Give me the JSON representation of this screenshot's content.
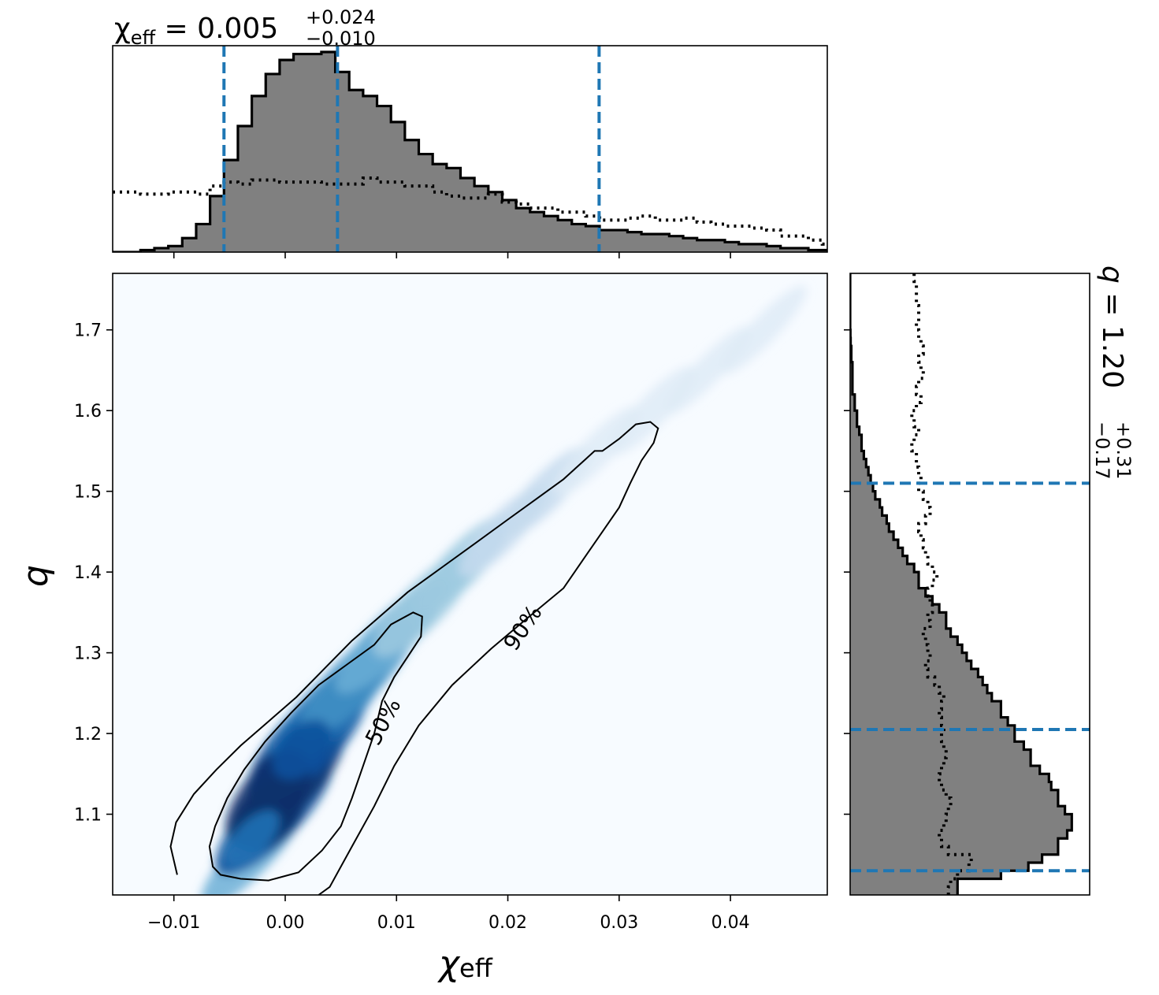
{
  "chart_data": [
    {
      "type": "histogram",
      "panel": "top-marginal",
      "title": {
        "prefix": "χ",
        "sub": "eff",
        "eq": " = 0.005",
        "sup": "+0.024",
        "low": "−0.010"
      },
      "x_range": [
        -0.0155,
        0.0487
      ],
      "dashed_lines": [
        -0.0055,
        0.0047,
        0.0282
      ],
      "bin_edges_start": -0.0155,
      "bin_width": 0.00125,
      "posterior_heights": [
        0.0,
        0.0,
        0.01,
        0.02,
        0.03,
        0.07,
        0.14,
        0.28,
        0.46,
        0.63,
        0.78,
        0.89,
        0.96,
        0.99,
        0.99,
        1.0,
        0.9,
        0.81,
        0.78,
        0.73,
        0.65,
        0.56,
        0.49,
        0.44,
        0.42,
        0.37,
        0.33,
        0.3,
        0.26,
        0.22,
        0.2,
        0.18,
        0.16,
        0.14,
        0.13,
        0.11,
        0.11,
        0.1,
        0.09,
        0.09,
        0.08,
        0.07,
        0.06,
        0.06,
        0.05,
        0.04,
        0.04,
        0.03,
        0.02,
        0.02,
        0.01,
        0.01
      ],
      "prior_heights": [
        0.3,
        0.3,
        0.29,
        0.29,
        0.3,
        0.3,
        0.29,
        0.33,
        0.35,
        0.34,
        0.36,
        0.36,
        0.35,
        0.35,
        0.35,
        0.34,
        0.34,
        0.34,
        0.37,
        0.35,
        0.35,
        0.33,
        0.33,
        0.3,
        0.28,
        0.27,
        0.27,
        0.29,
        0.25,
        0.24,
        0.22,
        0.22,
        0.2,
        0.2,
        0.18,
        0.16,
        0.16,
        0.17,
        0.18,
        0.16,
        0.16,
        0.17,
        0.15,
        0.14,
        0.13,
        0.13,
        0.12,
        0.11,
        0.08,
        0.08,
        0.06,
        0.04
      ],
      "x_ticks": [
        -0.01,
        0.0,
        0.01,
        0.02,
        0.03,
        0.04
      ]
    },
    {
      "type": "heatmap",
      "panel": "joint",
      "xlabel": {
        "main": "χ",
        "sub": "eff"
      },
      "ylabel": "q",
      "x_range": [
        -0.0155,
        0.0487
      ],
      "y_range": [
        1.0,
        1.77
      ],
      "x_ticks": [
        -0.01,
        0.0,
        0.01,
        0.02,
        0.03,
        0.04
      ],
      "x_tick_labels": [
        "−0.01",
        "0.00",
        "0.01",
        "0.02",
        "0.03",
        "0.04"
      ],
      "y_ticks": [
        1.1,
        1.2,
        1.3,
        1.4,
        1.5,
        1.6,
        1.7
      ],
      "y_tick_labels": [
        "1.1",
        "1.2",
        "1.3",
        "1.4",
        "1.5",
        "1.6",
        "1.7"
      ],
      "colormap": [
        "#f7fbff",
        "#deebf7",
        "#c6dbef",
        "#9ecae1",
        "#6baed6",
        "#4292c6",
        "#2171b5",
        "#08519c",
        "#08306b"
      ],
      "density_peak": [
        -0.0003,
        1.11
      ],
      "contour_labels": [
        "50%",
        "90%"
      ],
      "contour_50": [
        [
          -0.0065,
          1.035
        ],
        [
          -0.0068,
          1.06
        ],
        [
          -0.0063,
          1.085
        ],
        [
          -0.0052,
          1.12
        ],
        [
          -0.0037,
          1.155
        ],
        [
          -0.0018,
          1.19
        ],
        [
          0.0005,
          1.225
        ],
        [
          0.003,
          1.26
        ],
        [
          0.0055,
          1.285
        ],
        [
          0.008,
          1.31
        ],
        [
          0.0095,
          1.335
        ],
        [
          0.0115,
          1.35
        ],
        [
          0.0123,
          1.345
        ],
        [
          0.0122,
          1.32
        ],
        [
          0.011,
          1.295
        ],
        [
          0.0098,
          1.27
        ],
        [
          0.0087,
          1.24
        ],
        [
          0.008,
          1.2
        ],
        [
          0.007,
          1.16
        ],
        [
          0.006,
          1.12
        ],
        [
          0.005,
          1.085
        ],
        [
          0.0033,
          1.055
        ],
        [
          0.0012,
          1.028
        ],
        [
          -0.0015,
          1.018
        ],
        [
          -0.004,
          1.02
        ],
        [
          -0.0058,
          1.025
        ]
      ],
      "contour_90": [
        [
          -0.0097,
          1.025
        ],
        [
          -0.0103,
          1.06
        ],
        [
          -0.0098,
          1.09
        ],
        [
          -0.0082,
          1.125
        ],
        [
          -0.0062,
          1.155
        ],
        [
          -0.004,
          1.185
        ],
        [
          -0.0015,
          1.215
        ],
        [
          0.001,
          1.245
        ],
        [
          0.0035,
          1.28
        ],
        [
          0.006,
          1.315
        ],
        [
          0.0085,
          1.345
        ],
        [
          0.011,
          1.375
        ],
        [
          0.014,
          1.405
        ],
        [
          0.017,
          1.435
        ],
        [
          0.02,
          1.465
        ],
        [
          0.0225,
          1.49
        ],
        [
          0.025,
          1.515
        ],
        [
          0.027,
          1.54
        ],
        [
          0.0278,
          1.55
        ],
        [
          0.0285,
          1.55
        ],
        [
          0.03,
          1.565
        ],
        [
          0.0315,
          1.583
        ],
        [
          0.0328,
          1.586
        ],
        [
          0.0335,
          1.578
        ],
        [
          0.0331,
          1.56
        ],
        [
          0.032,
          1.538
        ],
        [
          0.031,
          1.51
        ],
        [
          0.03,
          1.48
        ],
        [
          0.0285,
          1.45
        ],
        [
          0.027,
          1.42
        ],
        [
          0.025,
          1.38
        ],
        [
          0.0215,
          1.34
        ],
        [
          0.0185,
          1.305
        ],
        [
          0.015,
          1.26
        ],
        [
          0.012,
          1.21
        ],
        [
          0.0098,
          1.16
        ],
        [
          0.008,
          1.11
        ],
        [
          0.006,
          1.06
        ],
        [
          0.004,
          1.01
        ],
        [
          0.003,
          1.0
        ]
      ]
    },
    {
      "type": "histogram",
      "panel": "right-marginal",
      "title": {
        "prefix": "q",
        "eq": " = 1.20",
        "sup": "+0.31",
        "low": "−0.17"
      },
      "y_range": [
        1.0,
        1.77
      ],
      "dashed_lines": [
        1.03,
        1.205,
        1.51
      ],
      "bin_edges_start": 1.0,
      "bin_width": 0.01,
      "posterior_heights": [
        0.47,
        0.47,
        0.66,
        0.78,
        0.84,
        0.91,
        0.91,
        0.95,
        0.97,
        0.97,
        0.94,
        0.91,
        0.91,
        0.88,
        0.87,
        0.83,
        0.79,
        0.79,
        0.76,
        0.72,
        0.72,
        0.69,
        0.66,
        0.66,
        0.62,
        0.6,
        0.58,
        0.56,
        0.53,
        0.51,
        0.49,
        0.47,
        0.44,
        0.42,
        0.42,
        0.39,
        0.36,
        0.33,
        0.3,
        0.3,
        0.28,
        0.25,
        0.23,
        0.21,
        0.19,
        0.17,
        0.16,
        0.14,
        0.13,
        0.11,
        0.1,
        0.09,
        0.08,
        0.07,
        0.06,
        0.05,
        0.05,
        0.04,
        0.03,
        0.03,
        0.02,
        0.02,
        0.01,
        0.01,
        0.01,
        0.01,
        0.005,
        0.005,
        0.002,
        0.001,
        0.0,
        0.0,
        0.0,
        0.0,
        0.0,
        0.0,
        0.0
      ],
      "prior_heights": [
        0.43,
        0.44,
        0.47,
        0.52,
        0.53,
        0.43,
        0.4,
        0.39,
        0.41,
        0.42,
        0.43,
        0.44,
        0.42,
        0.4,
        0.39,
        0.4,
        0.41,
        0.42,
        0.41,
        0.4,
        0.41,
        0.4,
        0.39,
        0.4,
        0.41,
        0.39,
        0.37,
        0.34,
        0.33,
        0.35,
        0.34,
        0.33,
        0.32,
        0.35,
        0.34,
        0.36,
        0.35,
        0.34,
        0.36,
        0.38,
        0.36,
        0.34,
        0.33,
        0.32,
        0.31,
        0.3,
        0.33,
        0.35,
        0.34,
        0.32,
        0.3,
        0.31,
        0.3,
        0.29,
        0.29,
        0.27,
        0.28,
        0.3,
        0.28,
        0.27,
        0.29,
        0.31,
        0.29,
        0.3,
        0.32,
        0.31,
        0.3,
        0.32,
        0.31,
        0.3,
        0.29,
        0.3,
        0.3,
        0.29,
        0.29,
        0.29,
        0.28
      ]
    }
  ]
}
